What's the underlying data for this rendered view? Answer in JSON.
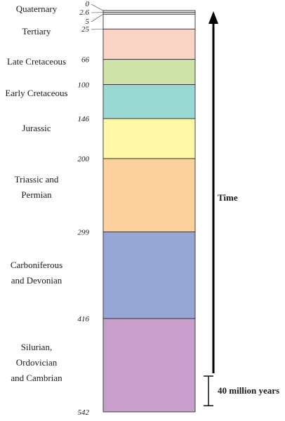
{
  "periods": [
    {
      "label": [
        "Quaternary"
      ],
      "start": 0,
      "end": 2.6,
      "color": "#f2f2f2"
    },
    {
      "label": [],
      "start": 2.6,
      "end": 5,
      "color": "#ffffff"
    },
    {
      "label": [],
      "start": 5,
      "end": 25,
      "color": "#ffffff"
    },
    {
      "label": [
        "Tertiary"
      ],
      "start": 25,
      "end": 66,
      "color": "#f9d3c6"
    },
    {
      "label": [
        "Late Cretaceous"
      ],
      "start": 66,
      "end": 100,
      "color": "#cfe3a8"
    },
    {
      "label": [
        "Early Cretaceous"
      ],
      "start": 100,
      "end": 146,
      "color": "#9ad9d3"
    },
    {
      "label": [
        "Jurassic"
      ],
      "start": 146,
      "end": 200,
      "color": "#fdf7a6"
    },
    {
      "label": [
        "Triassic and",
        "Permian"
      ],
      "start": 200,
      "end": 299,
      "color": "#fdd19e"
    },
    {
      "label": [
        "Carboniferous",
        "and Devonian"
      ],
      "start": 299,
      "end": 416,
      "color": "#98a6d6"
    },
    {
      "label": [
        "Silurian,",
        "Ordovician",
        "and Cambrian"
      ],
      "start": 416,
      "end": 542,
      "color": "#c79fca"
    }
  ],
  "boundaries": [
    "0",
    "2.6",
    "5",
    "25",
    "66",
    "100",
    "146",
    "200",
    "299",
    "416",
    "542"
  ],
  "time_label": "Time",
  "scale_bar": {
    "label": "40 million years",
    "value_million_years": 40
  }
}
